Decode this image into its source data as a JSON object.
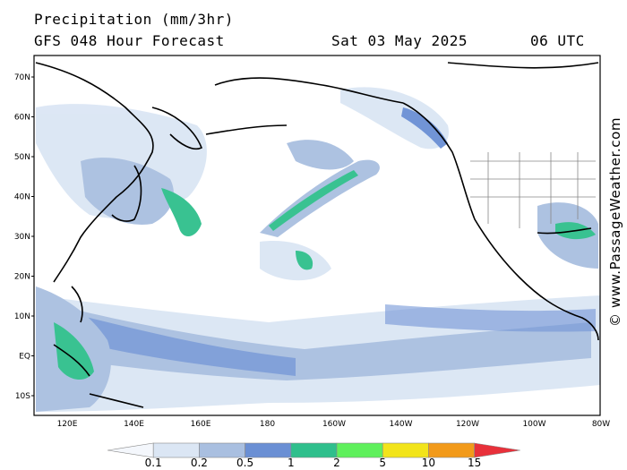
{
  "header": {
    "title": "Precipitation (mm/3hr)",
    "subtitle": "GFS 048 Hour Forecast",
    "valid_date": "Sat 03 May 2025",
    "valid_time": "06 UTC"
  },
  "credit": "© www.PassageWeather.com",
  "lat_labels": [
    "70N",
    "60N",
    "50N",
    "40N",
    "30N",
    "20N",
    "10N",
    "EQ",
    "10S"
  ],
  "lon_labels": [
    "120E",
    "140E",
    "160E",
    "180",
    "160W",
    "140W",
    "120W",
    "100W",
    "80W"
  ],
  "colorbar": {
    "labels": [
      "0.1",
      "0.2",
      "0.5",
      "1",
      "2",
      "5",
      "10",
      "15"
    ],
    "colors": [
      "#f4f7fc",
      "#dbe6f4",
      "#a9bfe0",
      "#6a8fd4",
      "#2fbf8c",
      "#5ff05c",
      "#f2e41a",
      "#f29a1a",
      "#e8303a"
    ]
  }
}
